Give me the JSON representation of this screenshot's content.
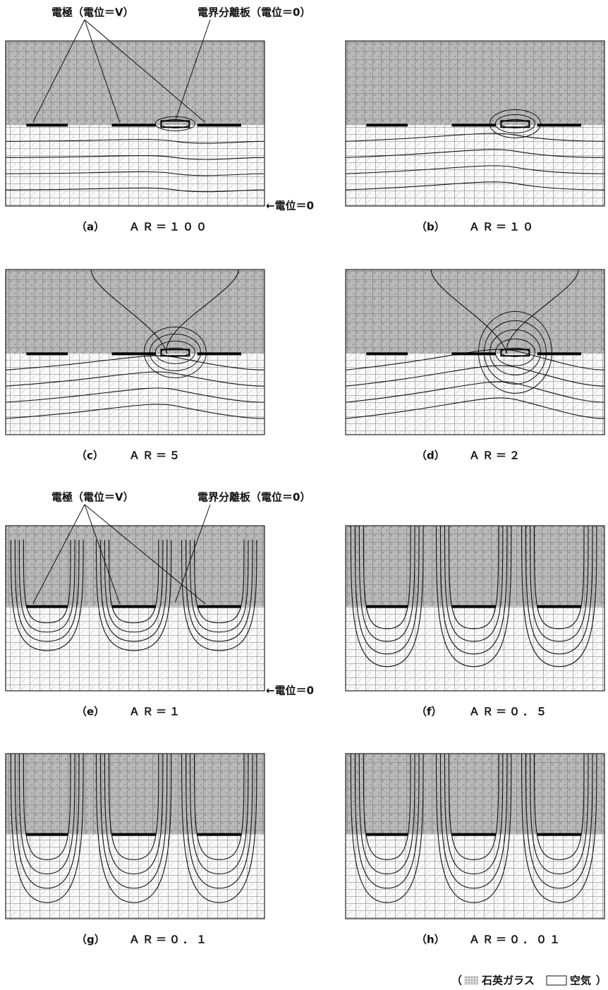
{
  "annotations": {
    "electrode": "電極（電位＝V）",
    "separator": "電界分離板（電位＝0）",
    "ground": "←電位＝0"
  },
  "panels": [
    {
      "label": "（a）",
      "ratio": "ＡＲ＝１００"
    },
    {
      "label": "（b）",
      "ratio": "ＡＲ＝１０"
    },
    {
      "label": "（c）",
      "ratio": "ＡＲ＝５"
    },
    {
      "label": "（d）",
      "ratio": "ＡＲ＝２"
    },
    {
      "label": "（e）",
      "ratio": "ＡＲ＝１"
    },
    {
      "label": "（f）",
      "ratio": "ＡＲ＝０．５"
    },
    {
      "label": "（g）",
      "ratio": "ＡＲ＝０．１"
    },
    {
      "label": "（h）",
      "ratio": "ＡＲ＝０．０１"
    }
  ],
  "legend": {
    "prefix": "（",
    "glass": "石英ガラス",
    "air": "空気",
    "suffix": "）"
  }
}
